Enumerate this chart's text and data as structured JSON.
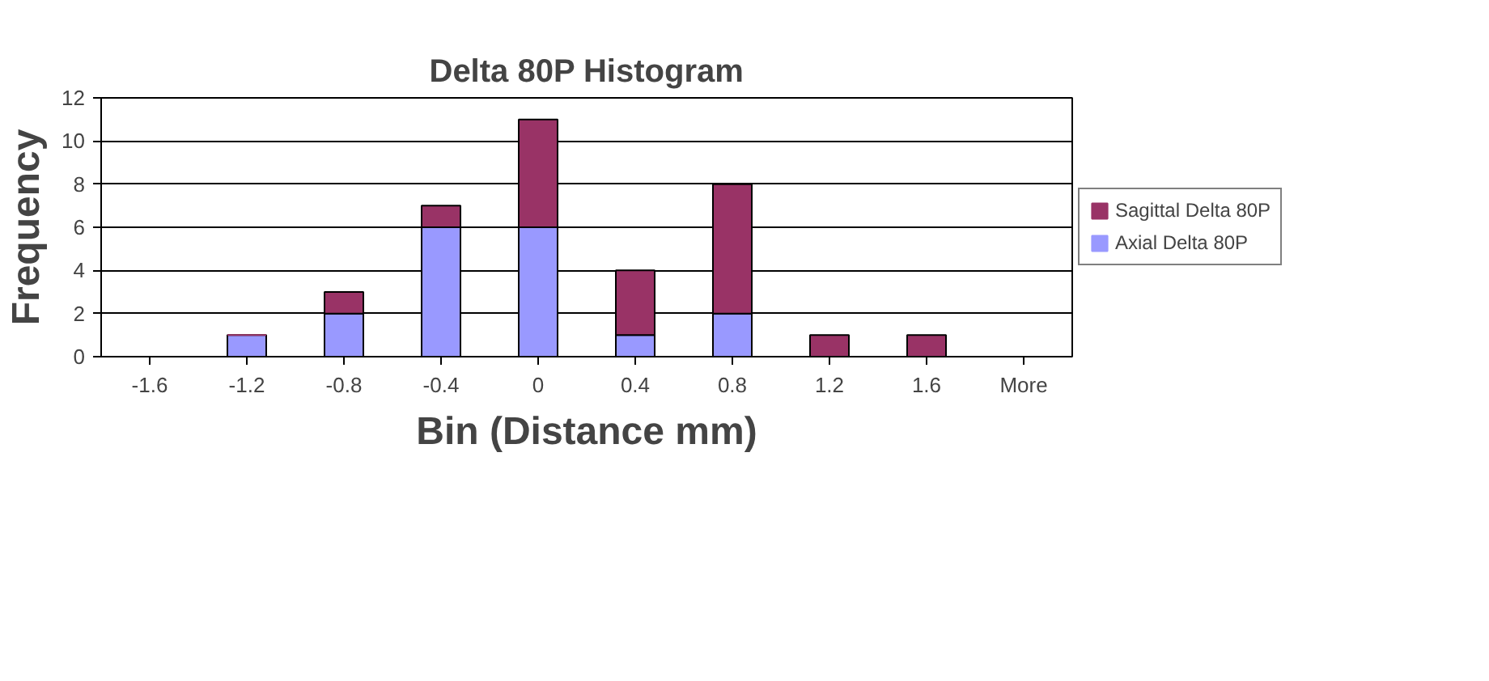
{
  "chart_data": {
    "type": "bar",
    "title": "Delta 80P Histogram",
    "xlabel": "Bin (Distance mm)",
    "ylabel": "Frequency",
    "categories": [
      "-1.6",
      "-1.2",
      "-0.8",
      "-0.4",
      "0",
      "0.4",
      "0.8",
      "1.2",
      "1.6",
      "More"
    ],
    "stacked": true,
    "series": [
      {
        "name": "Axial Delta 80P",
        "color": "#9999ff",
        "values": [
          0,
          1,
          2,
          6,
          6,
          1,
          2,
          0,
          0,
          0
        ]
      },
      {
        "name": "Sagittal Delta 80P",
        "color": "#993366",
        "values": [
          0,
          0,
          1,
          1,
          5,
          3,
          6,
          1,
          1,
          0
        ]
      }
    ],
    "ylim": [
      0,
      12
    ],
    "yticks": [
      0,
      2,
      4,
      6,
      8,
      10,
      12
    ],
    "grid": "y",
    "legend": "right"
  }
}
